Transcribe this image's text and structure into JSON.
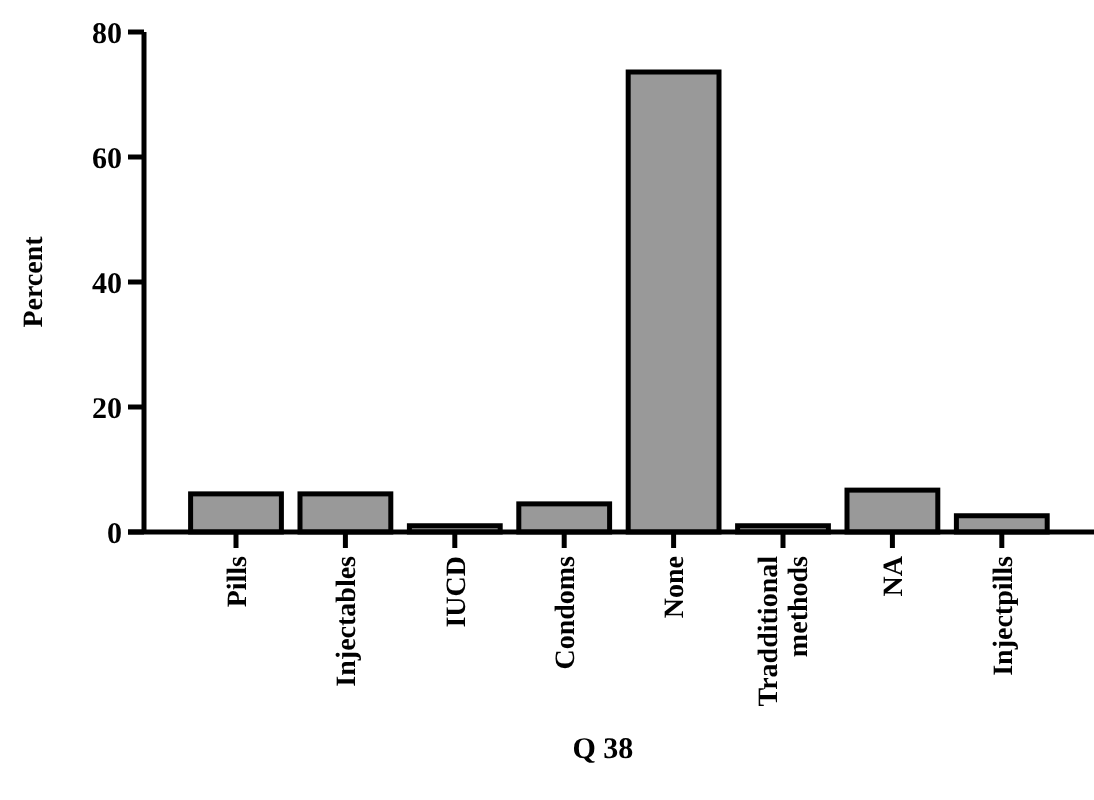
{
  "chart_data": {
    "type": "bar",
    "xlabel": "Q 38",
    "ylabel": "Percent",
    "categories": [
      "Pills",
      "Injectables",
      "IUCD",
      "Condoms",
      "None",
      "Tradditional methods",
      "NA",
      "Injectpills"
    ],
    "values": [
      6.1,
      6.1,
      1,
      4.5,
      73.6,
      1,
      6.7,
      2.6
    ],
    "color": "#999999",
    "ylim": [
      0,
      80
    ],
    "yticks": [
      0,
      20,
      40,
      60,
      80
    ],
    "grid": false
  }
}
